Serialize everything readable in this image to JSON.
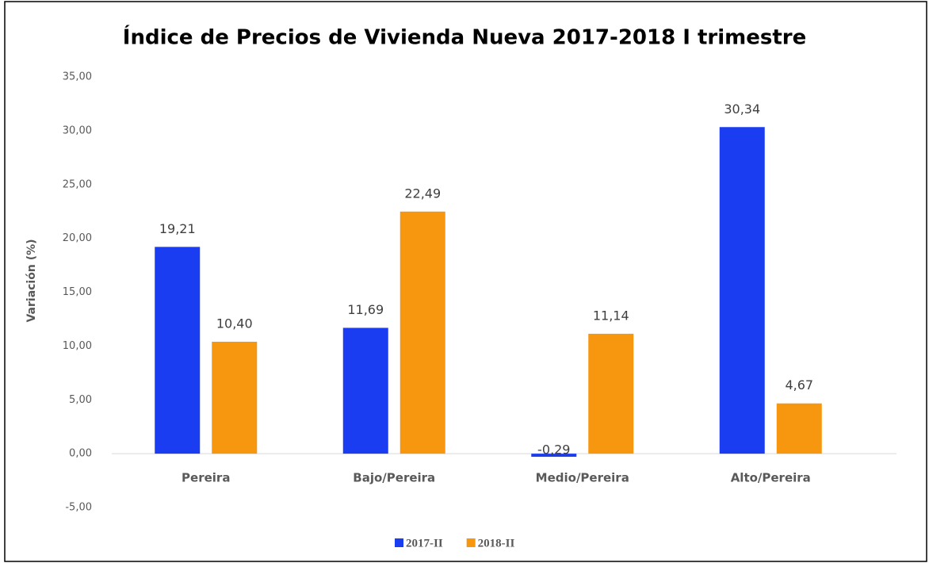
{
  "chart_data": {
    "type": "bar",
    "title": "Índice de Precios de Vivienda Nueva 2017-2018 I trimestre",
    "ylabel": "Variación (%)",
    "categories": [
      "Pereira",
      "Bajo/Pereira",
      "Medio/Pereira",
      "Alto/Pereira"
    ],
    "series": [
      {
        "name": "2017-II",
        "color": "#1b3df2",
        "values": [
          19.21,
          11.69,
          -0.29,
          30.34
        ],
        "value_labels": [
          "19,21",
          "11,69",
          "-0,29",
          "30,34"
        ]
      },
      {
        "name": "2018-II",
        "color": "#f7960f",
        "values": [
          10.4,
          22.49,
          11.14,
          4.67
        ],
        "value_labels": [
          "10,40",
          "22,49",
          "11,14",
          "4,67"
        ]
      }
    ],
    "ylim": [
      -5,
      35
    ],
    "yticks": [
      {
        "value": -5,
        "label": "-5,00"
      },
      {
        "value": 0,
        "label": "0,00"
      },
      {
        "value": 5,
        "label": "5,00"
      },
      {
        "value": 10,
        "label": "10,00"
      },
      {
        "value": 15,
        "label": "15,00"
      },
      {
        "value": 20,
        "label": "20,00"
      },
      {
        "value": 25,
        "label": "25,00"
      },
      {
        "value": 30,
        "label": "30,00"
      },
      {
        "value": 35,
        "label": "35,00"
      }
    ],
    "grid": false,
    "legend": "bottom"
  }
}
